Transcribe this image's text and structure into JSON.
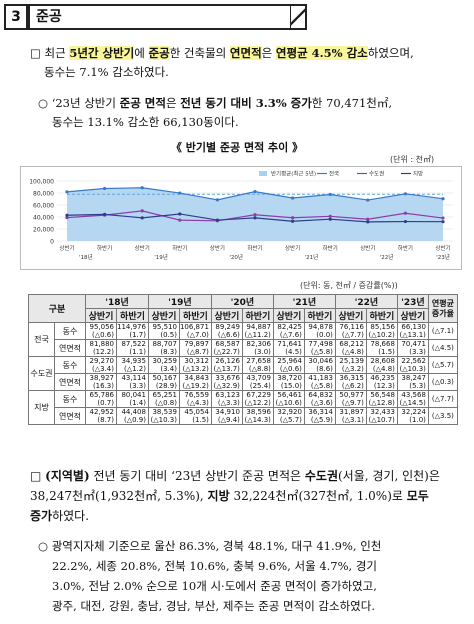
{
  "header": {
    "num": "3",
    "title": "준공"
  },
  "p1": {
    "marker": "□",
    "line1_a": "최근 ",
    "line1_b": "5년간 상반기",
    "line1_c": "에 ",
    "line1_d": "준공",
    "line1_e": "한 건축물의 ",
    "line1_f": "연면적",
    "line1_g": "은 ",
    "line1_h": "연평균 4.5% 감소",
    "line1_i": "하였으며,",
    "line2": "동수는 7.1% 감소하였다."
  },
  "p2": {
    "marker": "○",
    "line1_a": "‘23년 상반기 ",
    "line1_b": "준공 면적",
    "line1_c": "은 ",
    "line1_d": "전년 동기 대비 3.3% 증가",
    "line1_e": "한 70,471천㎡,",
    "line2": "동수는 13.1% 감소한 66,130동이다."
  },
  "chart": {
    "title": "《 반기별 준공 면적 추이 》",
    "unit": "(단위 : 천㎡)",
    "legend": [
      "반기평균(최근 5년)",
      "전국",
      "수도권",
      "지방"
    ],
    "yticks": [
      "100,000",
      "80,000",
      "60,000",
      "40,000",
      "20,000",
      "0"
    ],
    "xticks": [
      "상반기",
      "하반기",
      "상반기",
      "하반기",
      "상반기",
      "하반기",
      "상반기",
      "하반기",
      "상반기",
      "하반기",
      "상반기"
    ],
    "years": [
      "'18년",
      "'19년",
      "'20년",
      "'21년",
      "'22년",
      "'23년"
    ]
  },
  "chart_data": {
    "type": "line",
    "categories": [
      "'18 상반기",
      "'18 하반기",
      "'19 상반기",
      "'19 하반기",
      "'20 상반기",
      "'20 하반기",
      "'21 상반기",
      "'21 하반기",
      "'22 상반기",
      "'22 하반기",
      "'23 상반기"
    ],
    "series": [
      {
        "name": "반기평균(최근 5년)",
        "values": [
          78000,
          78000,
          78000,
          78000,
          78000,
          78000,
          78000,
          78000,
          78000,
          78000,
          78000
        ]
      },
      {
        "name": "전국",
        "values": [
          81880,
          87522,
          88707,
          79897,
          68587,
          82306,
          71641,
          77498,
          68212,
          78668,
          70471
        ]
      },
      {
        "name": "수도권",
        "values": [
          38927,
          43114,
          50167,
          34843,
          33676,
          43709,
          38720,
          41183,
          36315,
          46235,
          38247
        ]
      },
      {
        "name": "지방",
        "values": [
          42952,
          44408,
          38539,
          45054,
          34910,
          38596,
          32920,
          36314,
          31897,
          32433,
          32224
        ]
      }
    ],
    "ylim": [
      0,
      100000
    ]
  },
  "table": {
    "unit": "(단위: 동, 천㎡ / 증감률(%))",
    "head": {
      "col1": "구분",
      "years": [
        "'18년",
        "'19년",
        "'20년",
        "'21년",
        "'22년",
        "'23년"
      ],
      "last": "연평균 증가율"
    },
    "half": [
      "상반기",
      "하반기",
      "상반기",
      "하반기",
      "상반기",
      "하반기",
      "상반기",
      "하반기",
      "상반기",
      "하반기",
      "상반기"
    ],
    "regions": [
      {
        "name": "전국",
        "rows": [
          {
            "label": "동수",
            "v": [
              [
                "95,056",
                "(△0.6)"
              ],
              [
                "114,976",
                "(1.7)"
              ],
              [
                "95,510",
                "(0.5)"
              ],
              [
                "106,871",
                "(△7.0)"
              ],
              [
                "89,249",
                "(△6.6)"
              ],
              [
                "94,887",
                "(△11.2)"
              ],
              [
                "82,425",
                "(△7.6)"
              ],
              [
                "94,878",
                "(0.0)"
              ],
              [
                "76,116",
                "(△7.7)"
              ],
              [
                "85,156",
                "(△10.2)"
              ],
              [
                "66,130",
                "(△13.1)"
              ]
            ],
            "last": "(△7.1)"
          },
          {
            "label": "연면적",
            "v": [
              [
                "81,880",
                "(12.2)"
              ],
              [
                "87,522",
                "(1.1)"
              ],
              [
                "88,707",
                "(8.3)"
              ],
              [
                "79,897",
                "(△8.7)"
              ],
              [
                "68,587",
                "(△22.7)"
              ],
              [
                "82,306",
                "(3.0)"
              ],
              [
                "71,641",
                "(4.5)"
              ],
              [
                "77,498",
                "(△5.8)"
              ],
              [
                "68,212",
                "(△4.8)"
              ],
              [
                "78,668",
                "(1.5)"
              ],
              [
                "70,471",
                "(3.3)"
              ]
            ],
            "last": "(△4.5)"
          }
        ]
      },
      {
        "name": "수도권",
        "rows": [
          {
            "label": "동수",
            "v": [
              [
                "29,270",
                "(△3.4)"
              ],
              [
                "34,935",
                "(△1.2)"
              ],
              [
                "30,259",
                "(3.4)"
              ],
              [
                "30,312",
                "(△13.2)"
              ],
              [
                "26,126",
                "(△13.7)"
              ],
              [
                "27,658",
                "(△8.8)"
              ],
              [
                "25,964",
                "(△0.6)"
              ],
              [
                "30,046",
                "(8.6)"
              ],
              [
                "25,139",
                "(△3.2)"
              ],
              [
                "28,608",
                "(△4.8)"
              ],
              [
                "22,562",
                "(△10.3)"
              ]
            ],
            "last": "(△5.7)"
          },
          {
            "label": "연면적",
            "v": [
              [
                "38,927",
                "(16.3)"
              ],
              [
                "43,114",
                "(3.3)"
              ],
              [
                "50,167",
                "(28.9)"
              ],
              [
                "34,843",
                "(△19.2)"
              ],
              [
                "33,676",
                "(△32.9)"
              ],
              [
                "43,709",
                "(25.4)"
              ],
              [
                "38,720",
                "(15.0)"
              ],
              [
                "41,183",
                "(△5.8)"
              ],
              [
                "36,315",
                "(△6.2)"
              ],
              [
                "46,235",
                "(12.3)"
              ],
              [
                "38,247",
                "(5.3)"
              ]
            ],
            "last": "(△0.3)"
          }
        ]
      },
      {
        "name": "지방",
        "rows": [
          {
            "label": "동수",
            "v": [
              [
                "65,786",
                "(0.7)"
              ],
              [
                "80,041",
                "(1.4)"
              ],
              [
                "65,251",
                "(△0.8)"
              ],
              [
                "76,559",
                "(△4.3)"
              ],
              [
                "63,123",
                "(△3.3)"
              ],
              [
                "67,229",
                "(△12.2)"
              ],
              [
                "56,461",
                "(△10.6)"
              ],
              [
                "64,832",
                "(△3.6)"
              ],
              [
                "50,977",
                "(△9.7)"
              ],
              [
                "56,548",
                "(△12.8)"
              ],
              [
                "43,568",
                "(△14.5)"
              ]
            ],
            "last": "(△7.7)"
          },
          {
            "label": "연면적",
            "v": [
              [
                "42,952",
                "(8.7)"
              ],
              [
                "44,408",
                "(△0.9)"
              ],
              [
                "38,539",
                "(△10.3)"
              ],
              [
                "45,054",
                "(1.5)"
              ],
              [
                "34,910",
                "(△9.4)"
              ],
              [
                "38,596",
                "(△14.3)"
              ],
              [
                "32,920",
                "(△5.7)"
              ],
              [
                "36,314",
                "(△5.9)"
              ],
              [
                "31,897",
                "(△3.1)"
              ],
              [
                "32,433",
                "(△10.7)"
              ],
              [
                "32,224",
                "(1.0)"
              ]
            ],
            "last": "(△3.5)"
          }
        ]
      }
    ]
  },
  "p3": {
    "marker": "□",
    "a": "(지역별)",
    "b": " 전년 동기 대비 ‘23년 상반기 준공 면적은 ",
    "c": "수도권",
    "d": "(서울, 경기, 인천)은",
    "line2_a": "38,247천㎡(1,932천㎡, 5.3%), ",
    "line2_b": "지방",
    "line2_c": " 32,224천㎡(327천㎡, 1.0%)로 ",
    "line2_d": "모두",
    "line3": "증가",
    "line3_b": "하였다."
  },
  "p4": {
    "marker": "○",
    "line1": "광역지자체 기준으로 울산 86.3%, 경북 48.1%, 대구 41.9%, 인천",
    "line2": "22.2%, 세종 20.8%, 전북 10.6%, 충북 9.6%, 서울 4.7%, 경기",
    "line3": "3.0%, 전남 2.0% 순으로 10개 시·도에서 준공 면적이 증가하였고,",
    "line4": "광주, 대전, 강원, 충남, 경남, 부산, 제주는 준공 면적이 감소하였다."
  },
  "colors": {
    "area": "#a9d0ef",
    "nation": "#3a78c9",
    "capital": "#8e3da7",
    "local": "#2c3e8c",
    "highlight": "#f9f59a"
  }
}
